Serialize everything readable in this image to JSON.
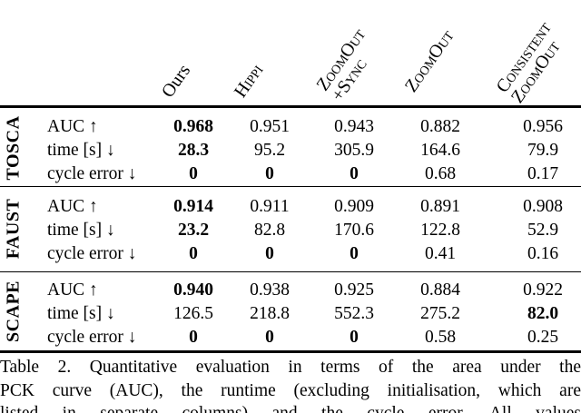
{
  "table": {
    "column_headers": [
      {
        "id": "ours",
        "lines": [
          "Ours"
        ],
        "smallcaps": false
      },
      {
        "id": "hippi",
        "lines": [
          "Hippi"
        ],
        "smallcaps": true
      },
      {
        "id": "zoomout-sync",
        "lines": [
          "ZoomOut",
          "+Sync"
        ],
        "smallcaps": true
      },
      {
        "id": "zoomout",
        "lines": [
          "ZoomOut"
        ],
        "smallcaps": true
      },
      {
        "id": "consistent-zoomout",
        "lines": [
          "Consistent",
          "ZoomOut"
        ],
        "smallcaps": true
      }
    ],
    "groups": [
      {
        "name": "TOSCA",
        "rows": [
          {
            "label": "AUC ↑",
            "values": [
              "0.968",
              "0.951",
              "0.943",
              "0.882",
              "0.956"
            ],
            "bold": [
              true,
              false,
              false,
              false,
              false
            ]
          },
          {
            "label": "time [s] ↓",
            "values": [
              "28.3",
              "95.2",
              "305.9",
              "164.6",
              "79.9"
            ],
            "bold": [
              true,
              false,
              false,
              false,
              false
            ]
          },
          {
            "label": "cycle error ↓",
            "values": [
              "0",
              "0",
              "0",
              "0.68",
              "0.17"
            ],
            "bold": [
              true,
              true,
              true,
              false,
              false
            ]
          }
        ]
      },
      {
        "name": "FAUST",
        "rows": [
          {
            "label": "AUC ↑",
            "values": [
              "0.914",
              "0.911",
              "0.909",
              "0.891",
              "0.908"
            ],
            "bold": [
              true,
              false,
              false,
              false,
              false
            ]
          },
          {
            "label": "time [s] ↓",
            "values": [
              "23.2",
              "82.8",
              "170.6",
              "122.8",
              "52.9"
            ],
            "bold": [
              true,
              false,
              false,
              false,
              false
            ]
          },
          {
            "label": "cycle error ↓",
            "values": [
              "0",
              "0",
              "0",
              "0.41",
              "0.16"
            ],
            "bold": [
              true,
              true,
              true,
              false,
              false
            ]
          }
        ]
      },
      {
        "name": "SCAPE",
        "rows": [
          {
            "label": "AUC ↑",
            "values": [
              "0.940",
              "0.938",
              "0.925",
              "0.884",
              "0.922"
            ],
            "bold": [
              true,
              false,
              false,
              false,
              false
            ]
          },
          {
            "label": "time [s] ↓",
            "values": [
              "126.5",
              "218.8",
              "552.3",
              "275.2",
              "82.0"
            ],
            "bold": [
              false,
              false,
              false,
              false,
              true
            ]
          },
          {
            "label": "cycle error ↓",
            "values": [
              "0",
              "0",
              "0",
              "0.58",
              "0.25"
            ],
            "bold": [
              true,
              true,
              true,
              false,
              false
            ]
          }
        ]
      }
    ]
  },
  "caption": {
    "lines": [
      "Table 2. Quantitative evaluation in terms of the area under the",
      "PCK curve (AUC), the runtime (excluding initialisation, which are",
      "listed in separate columns) and the cycle error. All values"
    ]
  }
}
